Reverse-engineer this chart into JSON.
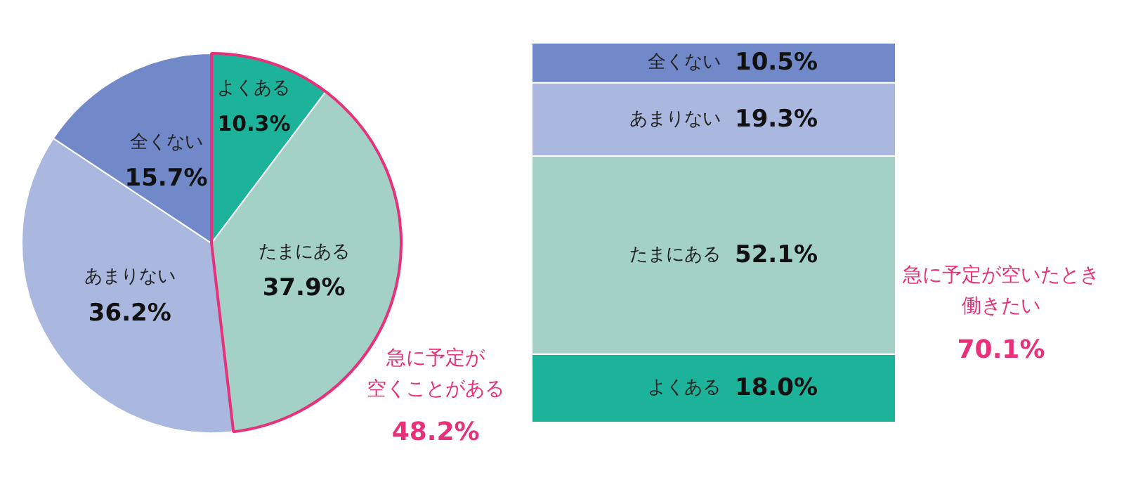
{
  "chart_data": [
    {
      "type": "pie",
      "categories": [
        "よくある",
        "たまにある",
        "あまりない",
        "全くない"
      ],
      "values": [
        10.3,
        37.9,
        36.2,
        15.7
      ],
      "value_labels": [
        "10.3%",
        "37.9%",
        "36.2%",
        "15.7%"
      ],
      "colors": [
        "#1db39b",
        "#a3d1c6",
        "#aab8df",
        "#7189c9"
      ],
      "annotations": [
        "急に予定が",
        "空くことがある",
        "48.2%"
      ]
    },
    {
      "type": "bar",
      "stacked": true,
      "categories": [
        null
      ],
      "series": [
        {
          "name": "よくある",
          "color": "#1db39b",
          "values": [
            18.0
          ],
          "value_labels": [
            "18.0%"
          ]
        },
        {
          "name": "たまにある",
          "color": "#a3d1c6",
          "values": [
            52.1
          ],
          "value_labels": [
            "52.1%"
          ]
        },
        {
          "name": "あまりない",
          "color": "#aab8df",
          "values": [
            19.3
          ],
          "value_labels": [
            "19.3%"
          ]
        },
        {
          "name": "全くない",
          "color": "#7189c9",
          "values": [
            10.5
          ],
          "value_labels": [
            "10.5%"
          ]
        }
      ],
      "annotations": [
        "急に予定が空いたとき",
        "働きたい",
        "70.1%"
      ]
    }
  ]
}
